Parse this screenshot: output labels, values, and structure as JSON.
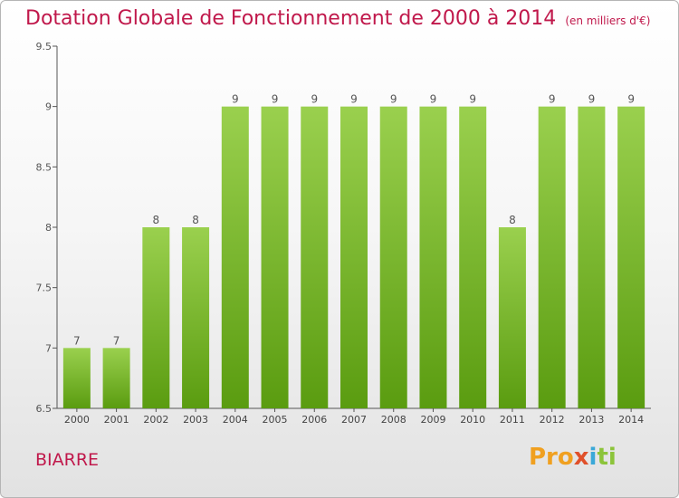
{
  "header": {
    "title": "Dotation Globale de Fonctionnement de 2000 à 2014",
    "subtitle": "(en milliers d'€)"
  },
  "footer": {
    "commune": "BIARRE",
    "logo": "Proxiti",
    "logo_parts": [
      "Pro",
      "x",
      "i",
      "ti"
    ]
  },
  "colors": {
    "title": "#c0184b",
    "bar_top": "#9ad04e",
    "bar_bottom": "#5a9c10",
    "axis": "#555555",
    "grid": "#d8d8d8"
  },
  "chart_data": {
    "type": "bar",
    "categories": [
      "2000",
      "2001",
      "2002",
      "2003",
      "2004",
      "2005",
      "2006",
      "2007",
      "2008",
      "2009",
      "2010",
      "2011",
      "2012",
      "2013",
      "2014"
    ],
    "values": [
      7,
      7,
      8,
      8,
      9,
      9,
      9,
      9,
      9,
      9,
      9,
      8,
      9,
      9,
      9
    ],
    "data_labels": [
      "7",
      "7",
      "8",
      "8",
      "9",
      "9",
      "9",
      "9",
      "9",
      "9",
      "9",
      "8",
      "9",
      "9",
      "9"
    ],
    "yticks": [
      "6.5",
      "7",
      "7.5",
      "8",
      "8.5",
      "9",
      "9.5"
    ],
    "ylim": [
      6.5,
      9.5
    ],
    "xlabel": "",
    "ylabel": "",
    "grid": false,
    "legend": "none"
  }
}
